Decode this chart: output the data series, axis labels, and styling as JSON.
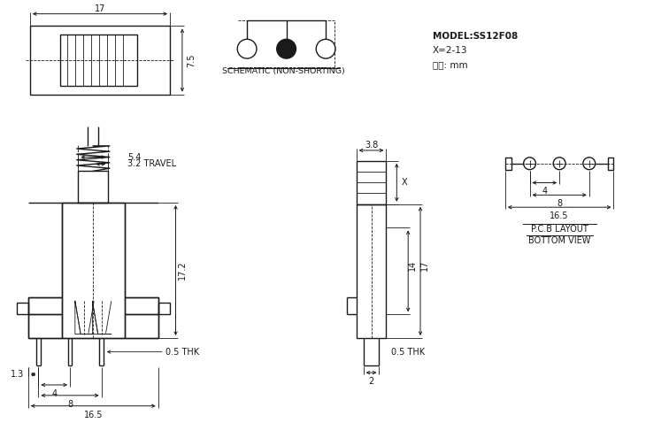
{
  "bg_color": "#ffffff",
  "line_color": "#1a1a1a",
  "lw": 1.0,
  "tlw": 0.6,
  "model_text": "MODEL:SS12F08",
  "x_text": "X=2-13",
  "unit_text": "单位: mm",
  "schematic_label": "SCHEMATIC (NON-SHORTING)",
  "pcb_label1": "P.C.B LAYOUT",
  "pcb_label2": "BOTTOM VIEW"
}
